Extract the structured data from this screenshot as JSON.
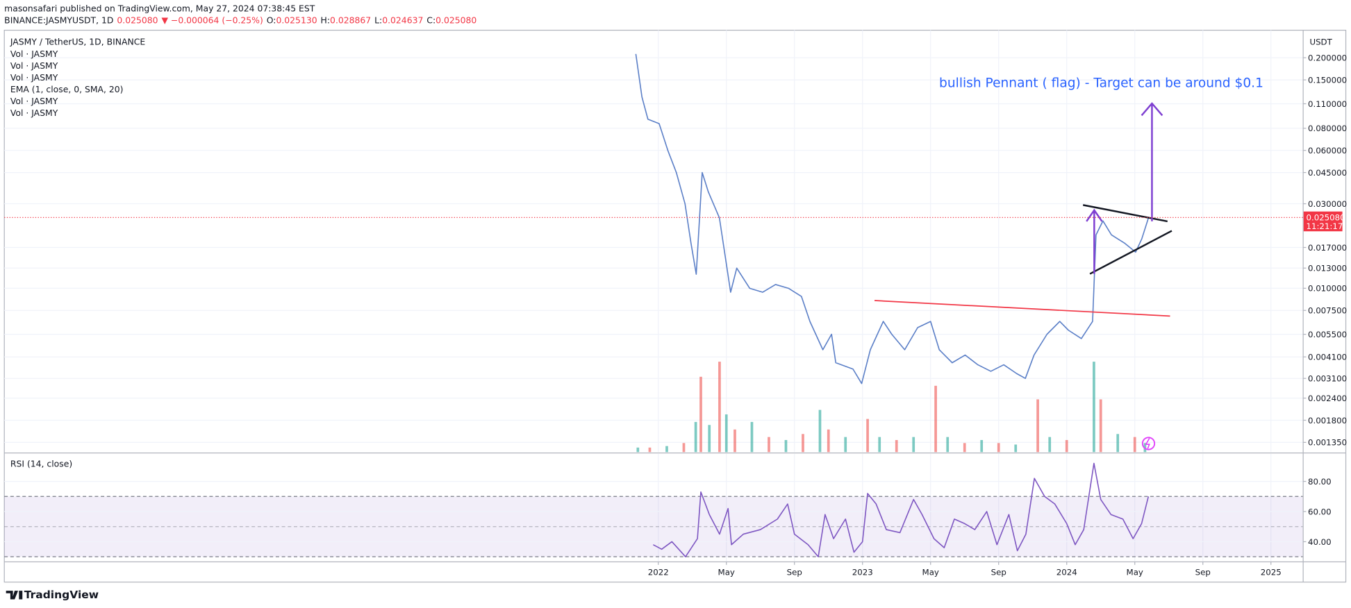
{
  "header": {
    "author_line": "masonsafari published on TradingView.com, May 27, 2024 07:38:45 EST",
    "symbol": "BINANCE:JASMYUSDT, 1D",
    "last": "0.025080",
    "change": "▼ −0.000064 (−0.25%)",
    "ohlc": [
      {
        "label": "O:",
        "value": "0.025130"
      },
      {
        "label": "H:",
        "value": "0.028867"
      },
      {
        "label": "L:",
        "value": "0.024637"
      },
      {
        "label": "C:",
        "value": "0.025080"
      }
    ]
  },
  "chart_data": [
    {
      "type": "line",
      "title": "JASMY / TetherUS, 1D, BINANCE",
      "indicators": [
        "Vol · JASMY",
        "Vol · JASMY",
        "Vol · JASMY",
        "EMA (1, close, 0, SMA, 20)",
        "Vol · JASMY",
        "Vol · JASMY"
      ],
      "currency": "USDT",
      "annotation": "bullish Pennant ( flag)  - Target can be around  $0.1",
      "yscale": "log",
      "grid": true,
      "color": "#5b7fc7",
      "x": [
        -1.32,
        -0.96,
        -0.61,
        0.05,
        0.56,
        1.06,
        1.57,
        1.92,
        2.23,
        2.58,
        2.94,
        3.59,
        4.25,
        4.61,
        5.37,
        6.13,
        6.89,
        7.65,
        8.41,
        8.91,
        9.67,
        10.18,
        10.43,
        11.44,
        11.95,
        12.46,
        13.22,
        13.72,
        14.48,
        15.24,
        16,
        16.51,
        17.27,
        18.03,
        18.78,
        19.54,
        20.3,
        21.06,
        21.57,
        22.08,
        22.84,
        23.59,
        24.1,
        24.86,
        25.52,
        25.72,
        26.13,
        26.63,
        27.39,
        28.05,
        28.41,
        28.81
      ],
      "values": [
        0.21,
        0.12,
        0.09,
        0.085,
        0.06,
        0.045,
        0.03,
        0.018,
        0.012,
        0.045,
        0.035,
        0.025,
        0.0095,
        0.013,
        0.01,
        0.0095,
        0.0105,
        0.01,
        0.009,
        0.0065,
        0.0045,
        0.0055,
        0.0038,
        0.0035,
        0.0029,
        0.0045,
        0.0065,
        0.0055,
        0.0045,
        0.006,
        0.0065,
        0.0045,
        0.0038,
        0.0042,
        0.0037,
        0.0034,
        0.0037,
        0.0033,
        0.0031,
        0.0042,
        0.0055,
        0.0065,
        0.0058,
        0.0052,
        0.0065,
        0.02,
        0.024,
        0.02,
        0.018,
        0.016,
        0.019,
        0.02508
      ],
      "volume_x": [
        -1.2,
        -0.5,
        0.5,
        1.5,
        2.2,
        2.5,
        3.0,
        3.6,
        4.0,
        4.5,
        5.5,
        6.5,
        7.5,
        8.5,
        9.5,
        10.0,
        11.0,
        12.3,
        13.0,
        14.0,
        15.0,
        16.3,
        17.0,
        18.0,
        19.0,
        20.0,
        21.0,
        22.3,
        23.0,
        24.0,
        25.6,
        26.0,
        27.0,
        28.0,
        28.6
      ],
      "volume_values": [
        3,
        3,
        4,
        6,
        20,
        50,
        18,
        60,
        25,
        15,
        20,
        10,
        8,
        12,
        28,
        15,
        10,
        22,
        10,
        8,
        10,
        44,
        10,
        6,
        8,
        6,
        5,
        35,
        10,
        8,
        60,
        35,
        12,
        10,
        6
      ],
      "volume_colors": [
        "#26a69a",
        "#ef5350"
      ],
      "vlim": [
        0,
        280
      ],
      "last": {
        "value": 0.02508,
        "label": "0.025080"
      },
      "countdown": "11:21:17",
      "xlim": [
        -38.43,
        37.87
      ],
      "xticks": [
        {
          "value": 0,
          "label": "2022"
        },
        {
          "value": 4,
          "label": "May"
        },
        {
          "value": 8,
          "label": "Sep"
        },
        {
          "value": 12,
          "label": "2023"
        },
        {
          "value": 16,
          "label": "May"
        },
        {
          "value": 20,
          "label": "Sep"
        },
        {
          "value": 24,
          "label": "2024"
        },
        {
          "value": 28,
          "label": "May"
        },
        {
          "value": 32,
          "label": "Sep"
        },
        {
          "value": 36,
          "label": "2025"
        }
      ],
      "ylim": [
        0.00119,
        0.286
      ],
      "yticks": [
        {
          "value": 0.2,
          "label": "0.200000"
        },
        {
          "value": 0.15,
          "label": "0.150000"
        },
        {
          "value": 0.11,
          "label": "0.110000"
        },
        {
          "value": 0.08,
          "label": "0.080000"
        },
        {
          "value": 0.06,
          "label": "0.060000"
        },
        {
          "value": 0.045,
          "label": "0.045000"
        },
        {
          "value": 0.03,
          "label": "0.030000"
        },
        {
          "value": 0.017,
          "label": "0.017000"
        },
        {
          "value": 0.013,
          "label": "0.013000"
        },
        {
          "value": 0.01,
          "label": "0.010000"
        },
        {
          "value": 0.0075,
          "label": "0.007500"
        },
        {
          "value": 0.0055,
          "label": "0.005500"
        },
        {
          "value": 0.0041,
          "label": "0.004100"
        },
        {
          "value": 0.0031,
          "label": "0.003100"
        },
        {
          "value": 0.0024,
          "label": "0.002400"
        },
        {
          "value": 0.0018,
          "label": "0.001800"
        },
        {
          "value": 0.00135,
          "label": "0.001350"
        }
      ]
    },
    {
      "type": "line",
      "title": "RSI (14, close)",
      "color": "#7e57c2",
      "grid": true,
      "x": [
        -0.3,
        0.2,
        0.8,
        1.6,
        2.3,
        2.5,
        3.0,
        3.6,
        4.1,
        4.3,
        5.0,
        6.0,
        7.0,
        7.6,
        8.0,
        8.8,
        9.4,
        9.8,
        10.3,
        11.0,
        11.5,
        12.0,
        12.3,
        12.8,
        13.4,
        14.2,
        15.0,
        15.5,
        16.2,
        16.8,
        17.4,
        18.0,
        18.6,
        19.3,
        19.9,
        20.6,
        21.1,
        21.6,
        22.1,
        22.7,
        23.3,
        24.0,
        24.5,
        25.0,
        25.6,
        26.0,
        26.6,
        27.3,
        27.9,
        28.4,
        28.8
      ],
      "values": [
        38,
        35,
        40,
        30,
        42,
        73,
        58,
        45,
        62,
        38,
        45,
        48,
        55,
        65,
        45,
        38,
        30,
        58,
        42,
        55,
        33,
        40,
        72,
        65,
        48,
        46,
        68,
        58,
        42,
        36,
        55,
        52,
        48,
        60,
        38,
        58,
        34,
        45,
        82,
        70,
        65,
        52,
        38,
        48,
        92,
        68,
        58,
        55,
        42,
        52,
        70
      ],
      "levels": [
        70,
        50,
        30
      ],
      "xlim": [
        -38.43,
        37.87
      ],
      "ylim": [
        26.9,
        98.3
      ],
      "yticks": [
        {
          "value": 80,
          "label": "80.00"
        },
        {
          "value": 60,
          "label": "60.00"
        },
        {
          "value": 40,
          "label": "40.00"
        }
      ]
    }
  ],
  "footer": {
    "brand": "TradingView"
  }
}
